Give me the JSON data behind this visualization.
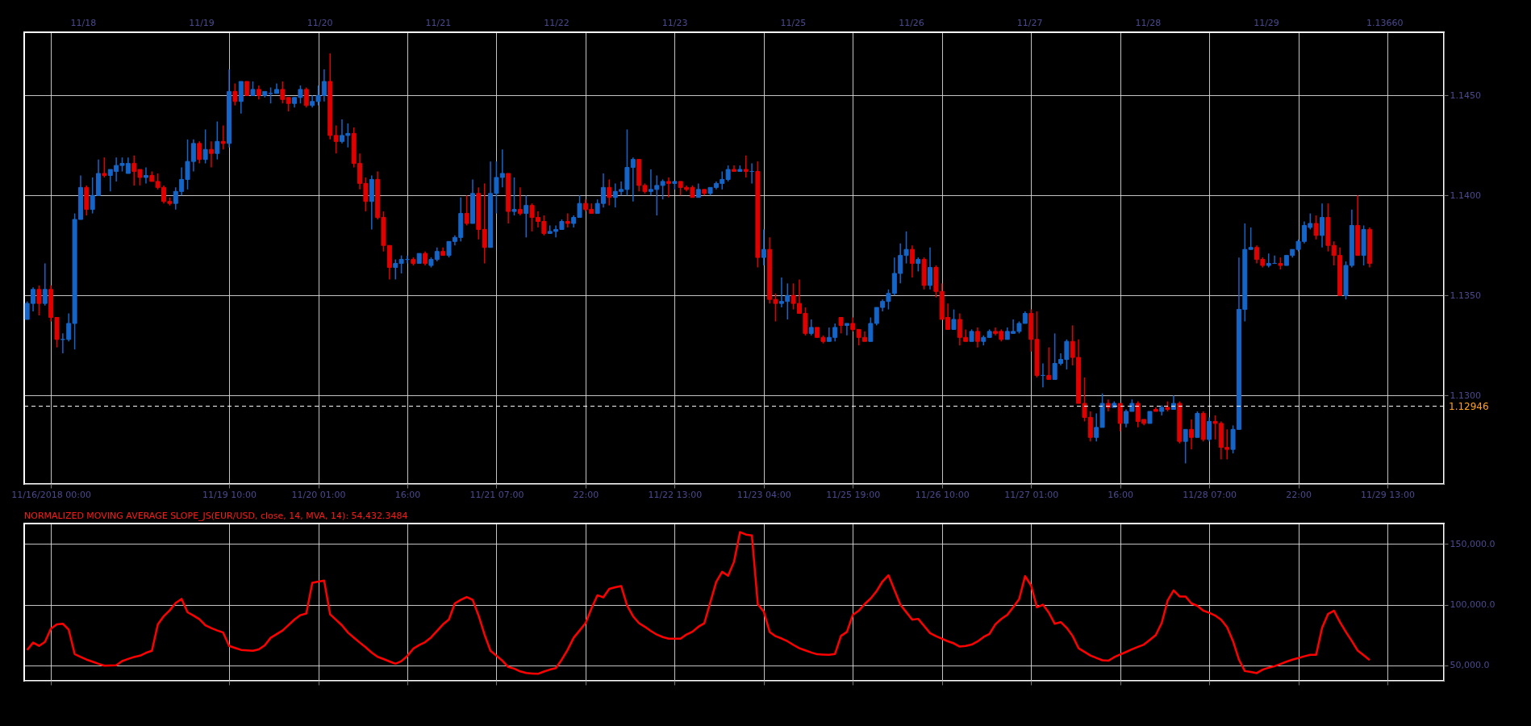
{
  "chart_data": [
    {
      "type": "candlestick",
      "categories": [
        null,
        null,
        null,
        null,
        "11/16/2018 00:00",
        null,
        null,
        null,
        null,
        null,
        null,
        null,
        null,
        null,
        null,
        null,
        null,
        null,
        null,
        null,
        null,
        null,
        null,
        null,
        null,
        null,
        null,
        null,
        null,
        null,
        null,
        null,
        null,
        null,
        "11/19 10:00",
        null,
        null,
        null,
        null,
        null,
        null,
        null,
        null,
        null,
        null,
        null,
        null,
        null,
        null,
        "11/20 01:00",
        null,
        null,
        null,
        null,
        null,
        null,
        null,
        null,
        null,
        null,
        null,
        null,
        null,
        null,
        "16:00",
        null,
        null,
        null,
        null,
        null,
        null,
        null,
        null,
        null,
        null,
        null,
        null,
        null,
        null,
        "11/21 07:00",
        null,
        null,
        null,
        null,
        null,
        null,
        null,
        null,
        null,
        null,
        null,
        null,
        null,
        null,
        "22:00",
        null,
        null,
        null,
        null,
        null,
        null,
        null,
        null,
        null,
        null,
        null,
        null,
        null,
        null,
        "11/22 13:00",
        null,
        null,
        null,
        null,
        null,
        null,
        null,
        null,
        null,
        null,
        null,
        null,
        null,
        null,
        "11/23 04:00",
        null,
        null,
        null,
        null,
        null,
        null,
        null,
        null,
        null,
        null,
        null,
        null,
        null,
        null,
        "11/25 19:00",
        null,
        null,
        null,
        null,
        null,
        null,
        null,
        null,
        null,
        null,
        null,
        null,
        null,
        null,
        "11/26 10:00",
        null,
        null,
        null,
        null,
        null,
        null,
        null,
        null,
        null,
        null,
        null,
        null,
        null,
        null,
        "11/27 01:00",
        null,
        null,
        null,
        null,
        null,
        null,
        null,
        null,
        null,
        null,
        null,
        null,
        null,
        null,
        "16:00",
        null,
        null,
        null,
        null,
        null,
        null,
        null,
        null,
        null,
        null,
        null,
        null,
        null,
        null,
        "11/28 07:00",
        null,
        null,
        null,
        null,
        null,
        null,
        null,
        null,
        null,
        null,
        null,
        null,
        null,
        null,
        "22:00",
        null,
        null,
        null,
        null,
        null,
        null,
        null,
        null,
        null,
        null,
        null,
        null,
        null,
        null,
        "11/29 13:00",
        null,
        null,
        null,
        null,
        null,
        null,
        null,
        null,
        null
      ],
      "ohlc": [
        [
          1.1338,
          1.1347,
          1.1338,
          1.1346
        ],
        [
          1.1346,
          1.1354,
          1.1342,
          1.1353
        ],
        [
          1.1353,
          1.1355,
          1.134,
          1.1346
        ],
        [
          1.1346,
          1.1366,
          1.1345,
          1.1353
        ],
        [
          1.1353,
          1.1355,
          1.1337,
          1.1339
        ],
        [
          1.1339,
          1.1339,
          1.1324,
          1.1328
        ],
        [
          1.1328,
          1.1331,
          1.1321,
          1.1328
        ],
        [
          1.1328,
          1.1341,
          1.1327,
          1.1336
        ],
        [
          1.1336,
          1.1391,
          1.1323,
          1.1388
        ],
        [
          1.1388,
          1.141,
          1.1388,
          1.1404
        ],
        [
          1.1404,
          1.1405,
          1.139,
          1.1393
        ],
        [
          1.1393,
          1.1409,
          1.1391,
          1.14
        ],
        [
          1.14,
          1.1418,
          1.14,
          1.1411
        ],
        [
          1.1411,
          1.1419,
          1.1409,
          1.141
        ],
        [
          1.141,
          1.1413,
          1.1402,
          1.1413
        ],
        [
          1.1412,
          1.1419,
          1.1407,
          1.1415
        ],
        [
          1.1415,
          1.1419,
          1.1412,
          1.1416
        ],
        [
          1.1411,
          1.1419,
          1.1411,
          1.1416
        ],
        [
          1.1416,
          1.142,
          1.1405,
          1.1412
        ],
        [
          1.1413,
          1.1413,
          1.1405,
          1.1409
        ],
        [
          1.1409,
          1.1414,
          1.1406,
          1.141
        ],
        [
          1.141,
          1.1412,
          1.1407,
          1.1407
        ],
        [
          1.1407,
          1.1411,
          1.1403,
          1.1404
        ],
        [
          1.1404,
          1.1405,
          1.1396,
          1.1397
        ],
        [
          1.1397,
          1.1399,
          1.1395,
          1.1396
        ],
        [
          1.1396,
          1.1404,
          1.1393,
          1.1402
        ],
        [
          1.1402,
          1.1414,
          1.14,
          1.1408
        ],
        [
          1.1408,
          1.1428,
          1.1403,
          1.1417
        ],
        [
          1.1417,
          1.1428,
          1.1412,
          1.1426
        ],
        [
          1.1426,
          1.1427,
          1.1416,
          1.1418
        ],
        [
          1.1418,
          1.1433,
          1.1416,
          1.1423
        ],
        [
          1.1423,
          1.1427,
          1.1414,
          1.1421
        ],
        [
          1.1421,
          1.1437,
          1.1418,
          1.1427
        ],
        [
          1.1427,
          1.1435,
          1.1423,
          1.1426
        ],
        [
          1.1426,
          1.1463,
          1.1424,
          1.1452
        ],
        [
          1.1452,
          1.1456,
          1.1445,
          1.1447
        ],
        [
          1.1447,
          1.1457,
          1.1441,
          1.1457
        ],
        [
          1.1457,
          1.1457,
          1.145,
          1.145
        ],
        [
          1.145,
          1.1457,
          1.145,
          1.1453
        ],
        [
          1.1453,
          1.1455,
          1.1448,
          1.145
        ],
        [
          1.145,
          1.1452,
          1.1449,
          1.1452
        ],
        [
          1.1451,
          1.1454,
          1.1446,
          1.1451
        ],
        [
          1.1451,
          1.1456,
          1.1451,
          1.1453
        ],
        [
          1.1453,
          1.1457,
          1.1446,
          1.1448
        ],
        [
          1.1449,
          1.1449,
          1.1442,
          1.1446
        ],
        [
          1.1446,
          1.1449,
          1.1444,
          1.1449
        ],
        [
          1.1449,
          1.1455,
          1.1446,
          1.1453
        ],
        [
          1.1453,
          1.1454,
          1.1444,
          1.1445
        ],
        [
          1.1445,
          1.145,
          1.1444,
          1.1447
        ],
        [
          1.1447,
          1.1455,
          1.1445,
          1.145
        ],
        [
          1.145,
          1.1463,
          1.1447,
          1.1457
        ],
        [
          1.1457,
          1.1471,
          1.1428,
          1.143
        ],
        [
          1.143,
          1.1435,
          1.1421,
          1.1427
        ],
        [
          1.1427,
          1.1438,
          1.1426,
          1.143
        ],
        [
          1.143,
          1.1436,
          1.1424,
          1.1431
        ],
        [
          1.1431,
          1.1434,
          1.1414,
          1.1416
        ],
        [
          1.1416,
          1.1421,
          1.1403,
          1.1406
        ],
        [
          1.1406,
          1.1409,
          1.1392,
          1.1397
        ],
        [
          1.1397,
          1.141,
          1.1383,
          1.1408
        ],
        [
          1.1408,
          1.1412,
          1.1388,
          1.1389
        ],
        [
          1.1389,
          1.1392,
          1.1372,
          1.1375
        ],
        [
          1.1375,
          1.1375,
          1.1358,
          1.1364
        ],
        [
          1.1364,
          1.1368,
          1.1358,
          1.1366
        ],
        [
          1.1366,
          1.137,
          1.1361,
          1.1368
        ],
        [
          1.1368,
          1.137,
          1.1366,
          1.1368
        ],
        [
          1.1368,
          1.1369,
          1.1365,
          1.1366
        ],
        [
          1.1366,
          1.1371,
          1.1366,
          1.1371
        ],
        [
          1.1371,
          1.1372,
          1.1365,
          1.1366
        ],
        [
          1.1365,
          1.1369,
          1.1364,
          1.1368
        ],
        [
          1.1368,
          1.1374,
          1.1367,
          1.1372
        ],
        [
          1.1372,
          1.1374,
          1.137,
          1.137
        ],
        [
          1.137,
          1.1377,
          1.1369,
          1.1377
        ],
        [
          1.1377,
          1.138,
          1.1375,
          1.1379
        ],
        [
          1.1379,
          1.1399,
          1.1377,
          1.1391
        ],
        [
          1.1391,
          1.14,
          1.1385,
          1.1386
        ],
        [
          1.1386,
          1.1408,
          1.1386,
          1.1401
        ],
        [
          1.1401,
          1.1404,
          1.1378,
          1.1383
        ],
        [
          1.1383,
          1.1406,
          1.1366,
          1.1374
        ],
        [
          1.1374,
          1.1417,
          1.1374,
          1.1401
        ],
        [
          1.1401,
          1.1417,
          1.1391,
          1.1409
        ],
        [
          1.1409,
          1.1423,
          1.1404,
          1.1411
        ],
        [
          1.1411,
          1.1411,
          1.1386,
          1.1392
        ],
        [
          1.1392,
          1.1409,
          1.139,
          1.1393
        ],
        [
          1.1393,
          1.1404,
          1.139,
          1.1391
        ],
        [
          1.1391,
          1.14,
          1.1379,
          1.1395
        ],
        [
          1.1395,
          1.1396,
          1.1382,
          1.1389
        ],
        [
          1.1389,
          1.1392,
          1.1384,
          1.1387
        ],
        [
          1.1387,
          1.139,
          1.138,
          1.1381
        ],
        [
          1.1381,
          1.1385,
          1.1381,
          1.1382
        ],
        [
          1.1382,
          1.1385,
          1.1379,
          1.1383
        ],
        [
          1.1383,
          1.1388,
          1.1383,
          1.1387
        ],
        [
          1.1387,
          1.1391,
          1.1384,
          1.1386
        ],
        [
          1.1386,
          1.139,
          1.1384,
          1.1389
        ],
        [
          1.1389,
          1.14,
          1.1389,
          1.1396
        ],
        [
          1.1396,
          1.1398,
          1.1392,
          1.1393
        ],
        [
          1.1393,
          1.1396,
          1.1391,
          1.1391
        ],
        [
          1.1391,
          1.1398,
          1.1391,
          1.1396
        ],
        [
          1.1396,
          1.1411,
          1.1394,
          1.1404
        ],
        [
          1.1404,
          1.1408,
          1.1395,
          1.1399
        ],
        [
          1.1399,
          1.1406,
          1.1394,
          1.1402
        ],
        [
          1.1402,
          1.1407,
          1.14,
          1.1403
        ],
        [
          1.1403,
          1.1433,
          1.14,
          1.1414
        ],
        [
          1.1414,
          1.1419,
          1.1397,
          1.1418
        ],
        [
          1.1418,
          1.1418,
          1.1402,
          1.1405
        ],
        [
          1.1405,
          1.1406,
          1.1401,
          1.1402
        ],
        [
          1.1402,
          1.1413,
          1.14,
          1.1403
        ],
        [
          1.1403,
          1.141,
          1.139,
          1.1405
        ],
        [
          1.1405,
          1.1408,
          1.1398,
          1.1407
        ],
        [
          1.1407,
          1.1409,
          1.1399,
          1.1406
        ],
        [
          1.1406,
          1.1407,
          1.1403,
          1.1407
        ],
        [
          1.1407,
          1.1407,
          1.14,
          1.1404
        ],
        [
          1.1404,
          1.1405,
          1.1402,
          1.1403
        ],
        [
          1.1404,
          1.1405,
          1.1399,
          1.1399
        ],
        [
          1.1399,
          1.1406,
          1.1399,
          1.1403
        ],
        [
          1.1403,
          1.1403,
          1.14,
          1.1401
        ],
        [
          1.1401,
          1.1404,
          1.14,
          1.1404
        ],
        [
          1.1404,
          1.1407,
          1.1403,
          1.1406
        ],
        [
          1.1406,
          1.1412,
          1.1403,
          1.1408
        ],
        [
          1.1408,
          1.1415,
          1.1407,
          1.1413
        ],
        [
          1.1413,
          1.1415,
          1.1412,
          1.1412
        ],
        [
          1.1412,
          1.1415,
          1.1412,
          1.1413
        ],
        [
          1.1413,
          1.142,
          1.1409,
          1.1412
        ],
        [
          1.1412,
          1.1416,
          1.1406,
          1.1412
        ],
        [
          1.1412,
          1.1417,
          1.1364,
          1.1369
        ],
        [
          1.1369,
          1.1383,
          1.1365,
          1.1373
        ],
        [
          1.1373,
          1.1379,
          1.1346,
          1.1348
        ],
        [
          1.1348,
          1.1351,
          1.1337,
          1.1346
        ],
        [
          1.1346,
          1.1359,
          1.1344,
          1.1347
        ],
        [
          1.1347,
          1.1356,
          1.1338,
          1.135
        ],
        [
          1.135,
          1.1356,
          1.1343,
          1.1346
        ],
        [
          1.1346,
          1.1358,
          1.1341,
          1.1341
        ],
        [
          1.1341,
          1.1344,
          1.133,
          1.1331
        ],
        [
          1.1331,
          1.1338,
          1.133,
          1.1334
        ],
        [
          1.1334,
          1.1334,
          1.1329,
          1.1329
        ],
        [
          1.1329,
          1.133,
          1.1326,
          1.1327
        ],
        [
          1.1327,
          1.1334,
          1.1327,
          1.1329
        ],
        [
          1.1329,
          1.1336,
          1.1327,
          1.1334
        ],
        [
          1.1339,
          1.1339,
          1.1331,
          1.1335
        ],
        [
          1.1335,
          1.1336,
          1.133,
          1.1336
        ],
        [
          1.1336,
          1.1339,
          1.1332,
          1.1333
        ],
        [
          1.1333,
          1.1333,
          1.1325,
          1.1329
        ],
        [
          1.1329,
          1.1332,
          1.1327,
          1.1327
        ],
        [
          1.1327,
          1.1339,
          1.1327,
          1.1336
        ],
        [
          1.1336,
          1.1344,
          1.1335,
          1.1344
        ],
        [
          1.1344,
          1.1348,
          1.1342,
          1.1347
        ],
        [
          1.1347,
          1.1353,
          1.1343,
          1.1351
        ],
        [
          1.1351,
          1.1369,
          1.135,
          1.1361
        ],
        [
          1.1361,
          1.1376,
          1.1356,
          1.137
        ],
        [
          1.137,
          1.1382,
          1.1366,
          1.1373
        ],
        [
          1.1373,
          1.1375,
          1.1359,
          1.1366
        ],
        [
          1.1366,
          1.1369,
          1.1362,
          1.1368
        ],
        [
          1.1368,
          1.1369,
          1.1353,
          1.1355
        ],
        [
          1.1355,
          1.1374,
          1.1353,
          1.1364
        ],
        [
          1.1364,
          1.1365,
          1.1349,
          1.1352
        ],
        [
          1.1352,
          1.1356,
          1.1338,
          1.1338
        ],
        [
          1.1339,
          1.1346,
          1.1333,
          1.1333
        ],
        [
          1.1333,
          1.1343,
          1.1333,
          1.1338
        ],
        [
          1.1338,
          1.1341,
          1.1325,
          1.1329
        ],
        [
          1.1329,
          1.1333,
          1.1327,
          1.1327
        ],
        [
          1.1327,
          1.1333,
          1.1327,
          1.1332
        ],
        [
          1.1332,
          1.1334,
          1.1324,
          1.1327
        ],
        [
          1.1327,
          1.133,
          1.1325,
          1.1329
        ],
        [
          1.1329,
          1.1333,
          1.1329,
          1.1332
        ],
        [
          1.1332,
          1.1334,
          1.133,
          1.1331
        ],
        [
          1.1332,
          1.1333,
          1.1327,
          1.1328
        ],
        [
          1.1328,
          1.1334,
          1.1328,
          1.1332
        ],
        [
          1.1331,
          1.1338,
          1.1331,
          1.1332
        ],
        [
          1.1332,
          1.1337,
          1.1331,
          1.1336
        ],
        [
          1.1336,
          1.1342,
          1.1336,
          1.1341
        ],
        [
          1.1341,
          1.1343,
          1.1322,
          1.1328
        ],
        [
          1.1328,
          1.1342,
          1.1309,
          1.131
        ],
        [
          1.131,
          1.1316,
          1.1304,
          1.131
        ],
        [
          1.131,
          1.1324,
          1.1308,
          1.1308
        ],
        [
          1.1308,
          1.1331,
          1.1308,
          1.1316
        ],
        [
          1.1316,
          1.1321,
          1.1315,
          1.1318
        ],
        [
          1.1318,
          1.1328,
          1.1313,
          1.1327
        ],
        [
          1.1327,
          1.1335,
          1.1315,
          1.1319
        ],
        [
          1.1319,
          1.1328,
          1.1296,
          1.1296
        ],
        [
          1.1296,
          1.1309,
          1.1287,
          1.1289
        ],
        [
          1.1289,
          1.1292,
          1.1277,
          1.1279
        ],
        [
          1.1279,
          1.1291,
          1.1277,
          1.1284
        ],
        [
          1.1284,
          1.1301,
          1.1284,
          1.1296
        ],
        [
          1.1296,
          1.1298,
          1.1292,
          1.1294
        ],
        [
          1.1294,
          1.1297,
          1.1294,
          1.1296
        ],
        [
          1.1296,
          1.1296,
          1.1282,
          1.1286
        ],
        [
          1.1286,
          1.1293,
          1.1284,
          1.1292
        ],
        [
          1.1292,
          1.1298,
          1.1292,
          1.1296
        ],
        [
          1.1296,
          1.1297,
          1.1284,
          1.1287
        ],
        [
          1.1288,
          1.1288,
          1.1285,
          1.1286
        ],
        [
          1.1286,
          1.1292,
          1.1286,
          1.1292
        ],
        [
          1.1293,
          1.1294,
          1.1292,
          1.1292
        ],
        [
          1.1292,
          1.1295,
          1.129,
          1.1294
        ],
        [
          1.1294,
          1.1297,
          1.1292,
          1.1293
        ],
        [
          1.1293,
          1.13,
          1.1293,
          1.1296
        ],
        [
          1.1296,
          1.1297,
          1.1276,
          1.1277
        ],
        [
          1.1277,
          1.1283,
          1.1266,
          1.1283
        ],
        [
          1.1283,
          1.1288,
          1.1273,
          1.1279
        ],
        [
          1.1279,
          1.1292,
          1.1279,
          1.1291
        ],
        [
          1.1291,
          1.1292,
          1.1277,
          1.1278
        ],
        [
          1.1278,
          1.1289,
          1.1277,
          1.1287
        ],
        [
          1.1287,
          1.129,
          1.1278,
          1.1286
        ],
        [
          1.1286,
          1.1287,
          1.1268,
          1.1274
        ],
        [
          1.1274,
          1.1283,
          1.1268,
          1.1273
        ],
        [
          1.1273,
          1.1285,
          1.1271,
          1.1283
        ],
        [
          1.1283,
          1.1369,
          1.1283,
          1.1343
        ],
        [
          1.1343,
          1.1386,
          1.1337,
          1.1373
        ],
        [
          1.1373,
          1.1384,
          1.1373,
          1.1374
        ],
        [
          1.1374,
          1.1375,
          1.1366,
          1.1368
        ],
        [
          1.1368,
          1.1369,
          1.1364,
          1.1365
        ],
        [
          1.1365,
          1.1371,
          1.1364,
          1.1366
        ],
        [
          1.1366,
          1.137,
          1.1366,
          1.1366
        ],
        [
          1.1366,
          1.1369,
          1.1363,
          1.1365
        ],
        [
          1.1365,
          1.137,
          1.1365,
          1.137
        ],
        [
          1.137,
          1.1373,
          1.1369,
          1.1373
        ],
        [
          1.1373,
          1.1378,
          1.1372,
          1.1377
        ],
        [
          1.1377,
          1.1387,
          1.1376,
          1.1385
        ],
        [
          1.1384,
          1.1391,
          1.1383,
          1.1386
        ],
        [
          1.1386,
          1.139,
          1.1378,
          1.138
        ],
        [
          1.138,
          1.1396,
          1.1374,
          1.1389
        ],
        [
          1.1389,
          1.1396,
          1.1372,
          1.1375
        ],
        [
          1.1375,
          1.1377,
          1.1365,
          1.137
        ],
        [
          1.137,
          1.1374,
          1.135,
          1.135
        ],
        [
          1.135,
          1.1367,
          1.1348,
          1.1365
        ],
        [
          1.1365,
          1.1393,
          1.1364,
          1.1385
        ],
        [
          1.1385,
          1.14,
          1.137,
          1.137
        ],
        [
          1.137,
          1.1385,
          1.1365,
          1.1383
        ],
        [
          1.1383,
          1.1384,
          1.1364,
          1.1366
        ],
        null,
        null,
        null,
        null,
        null,
        null,
        null,
        null,
        null,
        null,
        null,
        null
      ],
      "colors": [
        "#1565c8",
        "#1565c8",
        "#e00000",
        "#1565c8",
        "#e00000",
        "#e00000",
        "#1565c8",
        "#1565c8",
        "#1565c8",
        "#1565c8",
        "#e00000",
        "#1565c8",
        "#1565c8",
        "#e00000",
        "#1565c8",
        "#1565c8",
        "#1565c8",
        "#1565c8",
        "#e00000",
        "#e00000",
        "#1565c8",
        "#e00000",
        "#e00000",
        "#e00000",
        "#e00000",
        "#1565c8",
        "#1565c8",
        "#1565c8",
        "#1565c8",
        "#e00000",
        "#1565c8",
        "#e00000",
        "#1565c8",
        "#e00000",
        "#1565c8",
        "#e00000",
        "#1565c8",
        "#e00000",
        "#1565c8",
        "#e00000",
        "#1565c8",
        "#1565c8",
        "#1565c8",
        "#e00000",
        "#e00000",
        "#1565c8",
        "#1565c8",
        "#e00000",
        "#1565c8",
        "#1565c8",
        "#1565c8",
        "#e00000",
        "#e00000",
        "#1565c8",
        "#1565c8",
        "#e00000",
        "#e00000",
        "#e00000",
        "#1565c8",
        "#e00000",
        "#e00000",
        "#e00000",
        "#1565c8",
        "#1565c8",
        "#1565c8",
        "#e00000",
        "#1565c8",
        "#e00000",
        "#1565c8",
        "#1565c8",
        "#e00000",
        "#1565c8",
        "#1565c8",
        "#1565c8",
        "#e00000",
        "#1565c8",
        "#e00000",
        "#e00000",
        "#1565c8",
        "#1565c8",
        "#1565c8",
        "#e00000",
        "#1565c8",
        "#e00000",
        "#1565c8",
        "#e00000",
        "#e00000",
        "#e00000",
        "#1565c8",
        "#1565c8",
        "#1565c8",
        "#e00000",
        "#1565c8",
        "#1565c8",
        "#e00000",
        "#e00000",
        "#1565c8",
        "#1565c8",
        "#e00000",
        "#1565c8",
        "#1565c8",
        "#1565c8",
        "#1565c8",
        "#e00000",
        "#e00000",
        "#1565c8",
        "#1565c8",
        "#1565c8",
        "#e00000",
        "#1565c8",
        "#e00000",
        "#e00000",
        "#e00000",
        "#1565c8",
        "#e00000",
        "#1565c8",
        "#1565c8",
        "#1565c8",
        "#1565c8",
        "#e00000",
        "#1565c8",
        "#e00000",
        "#1565c8",
        "#e00000",
        "#1565c8",
        "#e00000",
        "#e00000",
        "#1565c8",
        "#1565c8",
        "#e00000",
        "#e00000",
        "#e00000",
        "#1565c8",
        "#e00000",
        "#e00000",
        "#1565c8",
        "#1565c8",
        "#e00000",
        "#1565c8",
        "#e00000",
        "#e00000",
        "#e00000",
        "#1565c8",
        "#1565c8",
        "#1565c8",
        "#1565c8",
        "#1565c8",
        "#1565c8",
        "#1565c8",
        "#e00000",
        "#1565c8",
        "#e00000",
        "#1565c8",
        "#e00000",
        "#e00000",
        "#e00000",
        "#1565c8",
        "#e00000",
        "#e00000",
        "#1565c8",
        "#e00000",
        "#1565c8",
        "#1565c8",
        "#e00000",
        "#e00000",
        "#1565c8",
        "#1565c8",
        "#1565c8",
        "#1565c8",
        "#e00000",
        "#e00000",
        "#1565c8",
        "#e00000",
        "#1565c8",
        "#1565c8",
        "#1565c8",
        "#e00000",
        "#e00000",
        "#e00000",
        "#e00000",
        "#1565c8",
        "#1565c8",
        "#e00000",
        "#1565c8",
        "#e00000",
        "#1565c8",
        "#1565c8",
        "#e00000",
        "#e00000",
        "#1565c8",
        "#e00000",
        "#1565c8",
        "#e00000",
        "#1565c8",
        "#e00000",
        "#1565c8",
        "#e00000",
        "#1565c8",
        "#e00000",
        "#1565c8",
        "#e00000",
        "#e00000",
        "#e00000",
        "#1565c8",
        "#1565c8",
        "#1565c8",
        "#1565c8",
        "#e00000",
        "#e00000",
        "#1565c8",
        "#1565c8",
        "#e00000",
        "#1565c8",
        "#1565c8",
        "#1565c8",
        "#1565c8",
        "#1565c8",
        "#e00000",
        "#1565c8",
        "#e00000",
        "#e00000",
        "#e00000",
        "#1565c8",
        "#1565c8",
        "#e00000",
        "#1565c8",
        "#e00000",
        null,
        null,
        null,
        null,
        null,
        null,
        null,
        null,
        null,
        null,
        null,
        null
      ],
      "ylim": [
        1.12557,
        1.14816
      ],
      "yticks": [
        {
          "value": 1.13,
          "label": "1.1300"
        },
        {
          "value": 1.135,
          "label": "1.1350"
        },
        {
          "value": 1.14,
          "label": "1.1400"
        },
        {
          "value": 1.145,
          "label": "1.1450"
        }
      ],
      "ref_lines": [
        {
          "axis": "y",
          "value": 1.12946,
          "label": "1.12946",
          "color": "#ffffff",
          "line_style": "dashed"
        }
      ],
      "annotations": [
        "11/18",
        "11/19",
        "11/20",
        "11/21",
        "11/22",
        "11/23",
        "11/25",
        "11/26",
        "11/27",
        "11/28",
        "11/29",
        "1.13660"
      ],
      "grid": true
    },
    {
      "type": "line",
      "title": "NORMALIZED MOVING AVERAGE SLOPE_JS(EUR/USD, close, 14, MVA, 14): 54,432.3484",
      "categories": [
        null,
        null,
        null,
        null,
        null,
        null,
        null,
        null,
        null,
        null,
        null,
        null,
        null,
        null,
        null,
        null,
        null,
        null,
        null,
        null,
        null,
        null,
        null,
        null,
        null,
        null,
        null,
        null,
        null,
        null,
        null,
        null,
        null,
        null,
        null,
        null,
        null,
        null,
        null,
        null,
        null,
        null,
        null,
        null,
        null,
        null,
        null,
        null,
        null,
        null,
        null,
        null,
        null,
        null,
        null,
        null,
        null,
        null,
        null,
        null,
        null,
        null,
        null,
        null,
        null,
        null,
        null,
        null,
        null,
        null,
        null,
        null,
        null,
        null,
        null,
        null,
        null,
        null,
        null,
        null,
        null,
        null,
        null,
        null,
        null,
        null,
        null,
        null,
        null,
        null,
        null,
        null,
        null,
        null,
        null,
        null,
        null,
        null,
        null,
        null,
        null,
        null,
        null,
        null,
        null,
        null,
        null,
        null,
        null,
        null,
        null,
        null,
        null,
        null,
        null,
        null,
        null,
        null,
        null,
        null,
        null,
        null,
        null,
        null,
        null,
        null,
        null,
        null,
        null,
        null,
        null,
        null,
        null,
        null,
        null,
        null,
        null,
        null,
        null,
        null,
        null,
        null,
        null,
        null,
        null,
        null,
        null,
        null,
        null,
        null,
        null,
        null,
        null,
        null,
        null,
        null,
        null,
        null,
        null,
        null,
        null,
        null,
        null,
        null,
        null,
        null,
        null,
        null,
        null,
        null,
        null,
        null,
        null,
        null,
        null,
        null,
        null,
        null,
        null,
        null,
        null,
        null,
        null,
        null,
        null,
        null,
        null,
        null,
        null,
        null,
        null,
        null,
        null,
        null,
        null,
        null,
        null,
        null,
        null,
        null,
        null,
        null,
        null,
        null,
        null,
        null,
        null,
        null,
        null,
        null,
        null,
        null,
        null,
        null,
        null,
        null,
        null,
        null,
        null,
        null,
        null,
        null,
        null,
        null,
        null,
        null,
        null,
        null,
        null,
        null,
        null,
        null,
        null,
        null,
        null,
        null,
        null,
        null,
        null
      ],
      "series": [
        {
          "color": "#ff0000",
          "values": [
            62700,
            68700,
            66000,
            69300,
            80300,
            83700,
            84300,
            79300,
            59300,
            57000,
            54700,
            53000,
            51300,
            49700,
            49800,
            50000,
            53500,
            55300,
            56900,
            58000,
            60300,
            62000,
            83700,
            90500,
            95300,
            101300,
            104700,
            93700,
            91000,
            88000,
            83000,
            80700,
            78700,
            77000,
            66000,
            64300,
            62700,
            62300,
            62000,
            63100,
            66500,
            72700,
            75700,
            78700,
            83200,
            87700,
            91300,
            92700,
            118000,
            119000,
            119700,
            92000,
            87500,
            82900,
            77000,
            72800,
            68700,
            64800,
            60500,
            57000,
            55200,
            53200,
            51300,
            53400,
            57700,
            63700,
            66700,
            69100,
            73000,
            78300,
            83700,
            87700,
            101000,
            103900,
            106300,
            103900,
            90900,
            75300,
            62000,
            57900,
            53800,
            48700,
            47300,
            45000,
            43700,
            43300,
            43000,
            44900,
            46500,
            47700,
            54700,
            62900,
            72700,
            78700,
            84700,
            96800,
            107700,
            106000,
            113000,
            114300,
            115300,
            99300,
            90400,
            84700,
            81700,
            78300,
            75300,
            73300,
            72000,
            72000,
            72000,
            75400,
            77700,
            81800,
            84700,
            101700,
            118700,
            127000,
            123700,
            135300,
            159700,
            157700,
            157000,
            100300,
            94300,
            77500,
            74000,
            72100,
            69800,
            66800,
            64100,
            62300,
            60600,
            59100,
            58900,
            58700,
            59400,
            74200,
            77500,
            91600,
            95000,
            100500,
            105000,
            111100,
            119100,
            124200,
            112100,
            100000,
            93800,
            87600,
            88300,
            82400,
            76500,
            74100,
            71900,
            69800,
            68100,
            65400,
            66000,
            67100,
            69700,
            73300,
            75800,
            83800,
            88200,
            91600,
            97900,
            104500,
            123500,
            115800,
            97700,
            100000,
            93300,
            84200,
            85600,
            80900,
            74200,
            64100,
            61100,
            58100,
            56100,
            54200,
            53800,
            56700,
            58900,
            61000,
            63200,
            65200,
            67100,
            71000,
            74900,
            84900,
            103400,
            111700,
            106700,
            106700,
            101000,
            99000,
            95000,
            93300,
            91000,
            87500,
            81400,
            70000,
            54700,
            45300,
            44500,
            43600,
            46500,
            48100,
            49300,
            51100,
            53000,
            54700,
            56000,
            57400,
            58700,
            58700,
            80900,
            92300,
            95000,
            85600,
            77500,
            70000,
            62100,
            58300,
            54400,
            null,
            null,
            null,
            null,
            null,
            null,
            null,
            null,
            null,
            null,
            null,
            null
          ]
        }
      ],
      "ylim": [
        37250,
        166760
      ],
      "yticks": [
        {
          "value": 50000,
          "label": "50,000.0"
        },
        {
          "value": 100000,
          "label": "100,000.0"
        },
        {
          "value": 150000,
          "label": "150,000.0"
        }
      ],
      "tick_labels": "y",
      "grid": true
    }
  ]
}
